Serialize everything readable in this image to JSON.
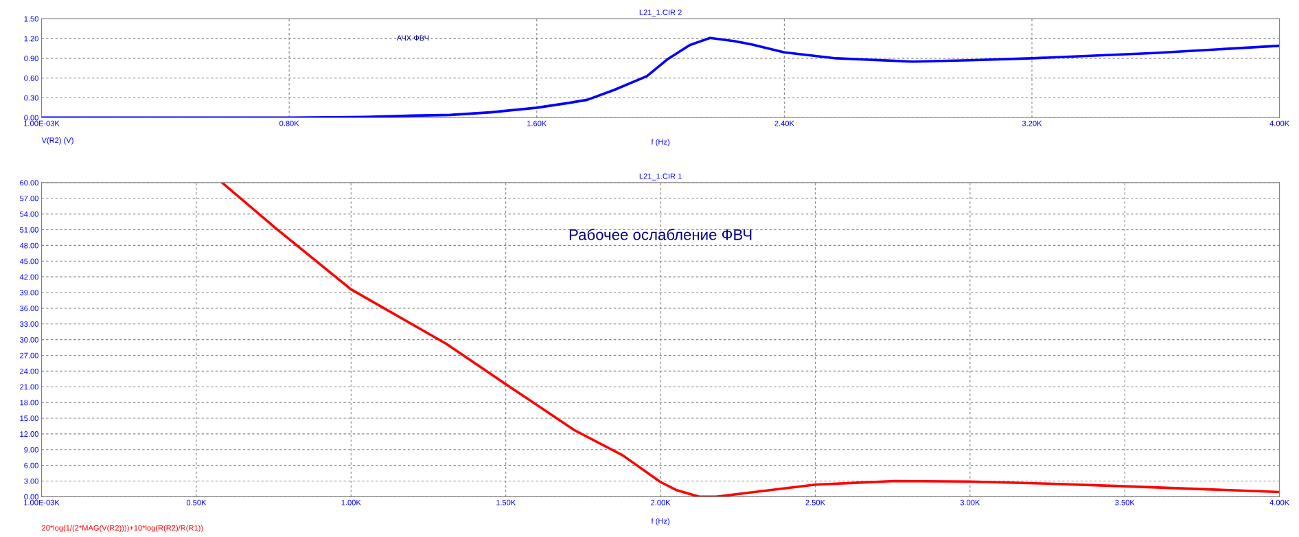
{
  "chart_data": [
    {
      "type": "line",
      "title": "L21_1.CIR 2",
      "xlabel": "f (Hz)",
      "annotations": [
        "АЧХ ФВЧ"
      ],
      "series": [
        {
          "name": "V(R2) (V)",
          "color": "#0000ff",
          "x": [
            0.001,
            400,
            800,
            1044,
            1200,
            1320,
            1450,
            1600,
            1700,
            1763,
            1850,
            1956,
            2021,
            2094,
            2160,
            2240,
            2295,
            2400,
            2568,
            2814,
            3000,
            3200,
            3594,
            4000
          ],
          "values": [
            0,
            0,
            0,
            0.01,
            0.03,
            0.04,
            0.08,
            0.15,
            0.22,
            0.27,
            0.42,
            0.63,
            0.88,
            1.1,
            1.21,
            1.16,
            1.11,
            0.99,
            0.9,
            0.85,
            0.87,
            0.9,
            0.98,
            1.09
          ]
        }
      ],
      "xlim": [
        0.001,
        4000
      ],
      "xticks": [
        {
          "value": 0.001,
          "label": "1.00E-03K"
        },
        {
          "value": 800,
          "label": "0.80K"
        },
        {
          "value": 1600,
          "label": "1.60K"
        },
        {
          "value": 2400,
          "label": "2.40K"
        },
        {
          "value": 3200,
          "label": "3.20K"
        },
        {
          "value": 4000,
          "label": "4.00K"
        }
      ],
      "ylim": [
        0,
        1.5
      ],
      "yticks": [
        {
          "value": 0,
          "label": "0.00"
        },
        {
          "value": 0.3,
          "label": "0.30"
        },
        {
          "value": 0.6,
          "label": "0.60"
        },
        {
          "value": 0.9,
          "label": "0.90"
        },
        {
          "value": 1.2,
          "label": "1.20"
        },
        {
          "value": 1.5,
          "label": "1.50"
        }
      ],
      "grid": true,
      "legend": false,
      "line_style": "solid",
      "marker": "none"
    },
    {
      "type": "line",
      "title": "L21_1.CIR 1",
      "xlabel": "f (Hz)",
      "annotations": [
        "Рабочее ослабление ФВЧ"
      ],
      "series": [
        {
          "name": "20*log(1/(2*MAG(V(R2))))+10*log(R(R2)/R(R1))",
          "color": "#ff0000",
          "x": [
            583,
            756,
            1000,
            1308,
            1500,
            1722,
            1878,
            2000,
            2050,
            2125,
            2180,
            2289,
            2500,
            2755,
            3000,
            3249,
            3500,
            4000
          ],
          "values": [
            60,
            51.3,
            39.6,
            29.2,
            21.5,
            12.7,
            7.9,
            2.8,
            1.3,
            0,
            0,
            0.8,
            2.3,
            3.0,
            2.9,
            2.5,
            2.0,
            0.9
          ]
        }
      ],
      "xlim": [
        0.001,
        4000
      ],
      "xticks": [
        {
          "value": 0.001,
          "label": "1.00E-03K"
        },
        {
          "value": 500,
          "label": "0.50K"
        },
        {
          "value": 1000,
          "label": "1.00K"
        },
        {
          "value": 1500,
          "label": "1.50K"
        },
        {
          "value": 2000,
          "label": "2.00K"
        },
        {
          "value": 2500,
          "label": "2.50K"
        },
        {
          "value": 3000,
          "label": "3.00K"
        },
        {
          "value": 3500,
          "label": "3.50K"
        },
        {
          "value": 4000,
          "label": "4.00K"
        }
      ],
      "ylim": [
        0,
        60
      ],
      "yticks": [
        {
          "value": 0,
          "label": "0.00"
        },
        {
          "value": 3,
          "label": "3.00"
        },
        {
          "value": 6,
          "label": "6.00"
        },
        {
          "value": 9,
          "label": "9.00"
        },
        {
          "value": 12,
          "label": "12.00"
        },
        {
          "value": 15,
          "label": "15.00"
        },
        {
          "value": 18,
          "label": "18.00"
        },
        {
          "value": 21,
          "label": "21.00"
        },
        {
          "value": 24,
          "label": "24.00"
        },
        {
          "value": 27,
          "label": "27.00"
        },
        {
          "value": 30,
          "label": "30.00"
        },
        {
          "value": 33,
          "label": "33.00"
        },
        {
          "value": 36,
          "label": "36.00"
        },
        {
          "value": 39,
          "label": "39.00"
        },
        {
          "value": 42,
          "label": "42.00"
        },
        {
          "value": 45,
          "label": "45.00"
        },
        {
          "value": 48,
          "label": "48.00"
        },
        {
          "value": 51,
          "label": "51.00"
        },
        {
          "value": 54,
          "label": "54.00"
        },
        {
          "value": 57,
          "label": "57.00"
        },
        {
          "value": 60,
          "label": "60.00"
        }
      ],
      "grid": true,
      "legend": false,
      "line_style": "solid",
      "marker": "none"
    }
  ]
}
